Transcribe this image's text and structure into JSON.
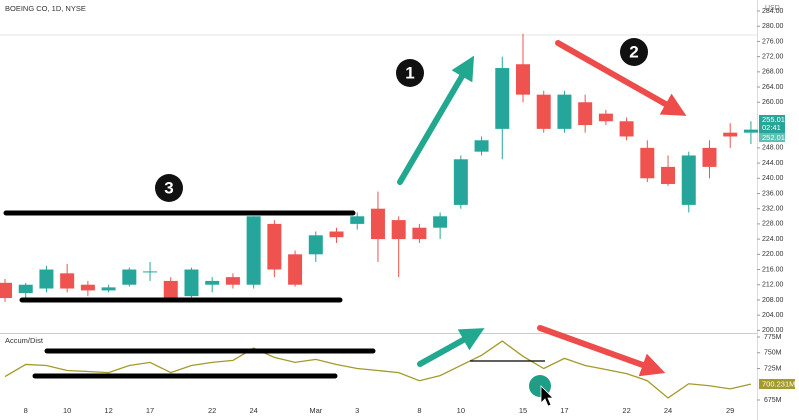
{
  "chart_data": [
    {
      "type": "candlestick",
      "title": "BOEING CO, 1D, NYSE",
      "currency": "USD",
      "categories": [
        null,
        "8",
        null,
        "10",
        null,
        "12",
        null,
        "17",
        null,
        null,
        "22",
        null,
        "24",
        null,
        null,
        "Mar",
        null,
        "3",
        null,
        null,
        "8",
        null,
        "10",
        null,
        null,
        "15",
        null,
        "17",
        null,
        null,
        "22",
        null,
        "24",
        null,
        null,
        "29",
        null
      ],
      "open": [
        212.5,
        209.8,
        211,
        215,
        212,
        210.5,
        212,
        215.3,
        213,
        209,
        212,
        214,
        212,
        228,
        220,
        220,
        226,
        228,
        232,
        229,
        227,
        227,
        233,
        247,
        253,
        270,
        262,
        253,
        260,
        257,
        255,
        248,
        243,
        233,
        248,
        252,
        252
      ],
      "high": [
        213.5,
        212.5,
        217,
        217.5,
        213,
        212,
        216.5,
        218,
        214,
        216.5,
        214,
        215,
        230,
        229,
        221,
        226,
        227,
        231,
        236.5,
        230,
        228,
        231,
        246,
        251,
        272,
        278,
        263,
        263,
        262,
        258,
        256,
        250,
        246,
        247,
        250,
        254.5,
        255
      ],
      "low": [
        207.5,
        208,
        210,
        210,
        209,
        210,
        211.5,
        213,
        207.5,
        208.5,
        210,
        211,
        211,
        214,
        211.5,
        218,
        223,
        226.5,
        218,
        214,
        223,
        224,
        232,
        246,
        245,
        260,
        252,
        252,
        252,
        254,
        250,
        239,
        238,
        231,
        240,
        248,
        249
      ],
      "close": [
        208.5,
        212,
        216,
        211,
        210.5,
        211.3,
        216,
        215.5,
        208.5,
        216,
        213,
        212,
        230,
        216,
        212,
        225,
        224.5,
        230,
        224,
        224,
        224,
        230,
        245,
        250,
        269,
        262,
        253,
        262,
        254,
        255,
        251,
        240,
        238.5,
        246,
        243,
        251,
        252.8
      ],
      "up_color": "#26a69a",
      "down_color": "#ef5350",
      "ylim": [
        199.3,
        286.9
      ],
      "yticks": [
        {
          "value": 200,
          "label": "200.00"
        },
        {
          "value": 204,
          "label": "204.00"
        },
        {
          "value": 208,
          "label": "208.00"
        },
        {
          "value": 212,
          "label": "212.00"
        },
        {
          "value": 216,
          "label": "216.00"
        },
        {
          "value": 220,
          "label": "220.00"
        },
        {
          "value": 224,
          "label": "224.00"
        },
        {
          "value": 228,
          "label": "228.00"
        },
        {
          "value": 232,
          "label": "232.00"
        },
        {
          "value": 236,
          "label": "236.00"
        },
        {
          "value": 240,
          "label": "240.00"
        },
        {
          "value": 244,
          "label": "244.00"
        },
        {
          "value": 248,
          "label": "248.00"
        },
        {
          "value": 260,
          "label": "260.00"
        },
        {
          "value": 264,
          "label": "264.00"
        },
        {
          "value": 268,
          "label": "268.00"
        },
        {
          "value": 272,
          "label": "272.00"
        },
        {
          "value": 276,
          "label": "276.00"
        },
        {
          "value": 280,
          "label": "280.00"
        },
        {
          "value": 284,
          "label": "284.00"
        }
      ],
      "price_badges": [
        "255.01",
        "02:41",
        "252.01"
      ]
    },
    {
      "type": "line",
      "title": "Accum/Dist",
      "series": [
        {
          "name": "Accum/Dist",
          "color": "#a39a2a",
          "values": [
            712.1,
            731.4,
            729.8,
            721.8,
            720.2,
            718.5,
            729.8,
            734.7,
            718.5,
            729.8,
            734.7,
            737.9,
            757.3,
            742.7,
            734.7,
            739.5,
            731.4,
            725,
            721.8,
            718.5,
            705.6,
            713.7,
            729.8,
            746,
            768.5,
            744.4,
            725,
            741.1,
            729.8,
            723.4,
            716.9,
            705.6,
            678.2,
            700.8,
            697.6,
            692.7,
            700.2
          ]
        }
      ],
      "ylim": [
        671.8,
        778.2
      ],
      "yticks": [
        {
          "value": 675,
          "label": "675M"
        },
        {
          "value": 725,
          "label": "725M"
        },
        {
          "value": 750,
          "label": "750M"
        },
        {
          "value": 775,
          "label": "775M"
        }
      ],
      "last_label": "700.231M"
    }
  ],
  "annotations": [
    "1",
    "2",
    "3"
  ]
}
